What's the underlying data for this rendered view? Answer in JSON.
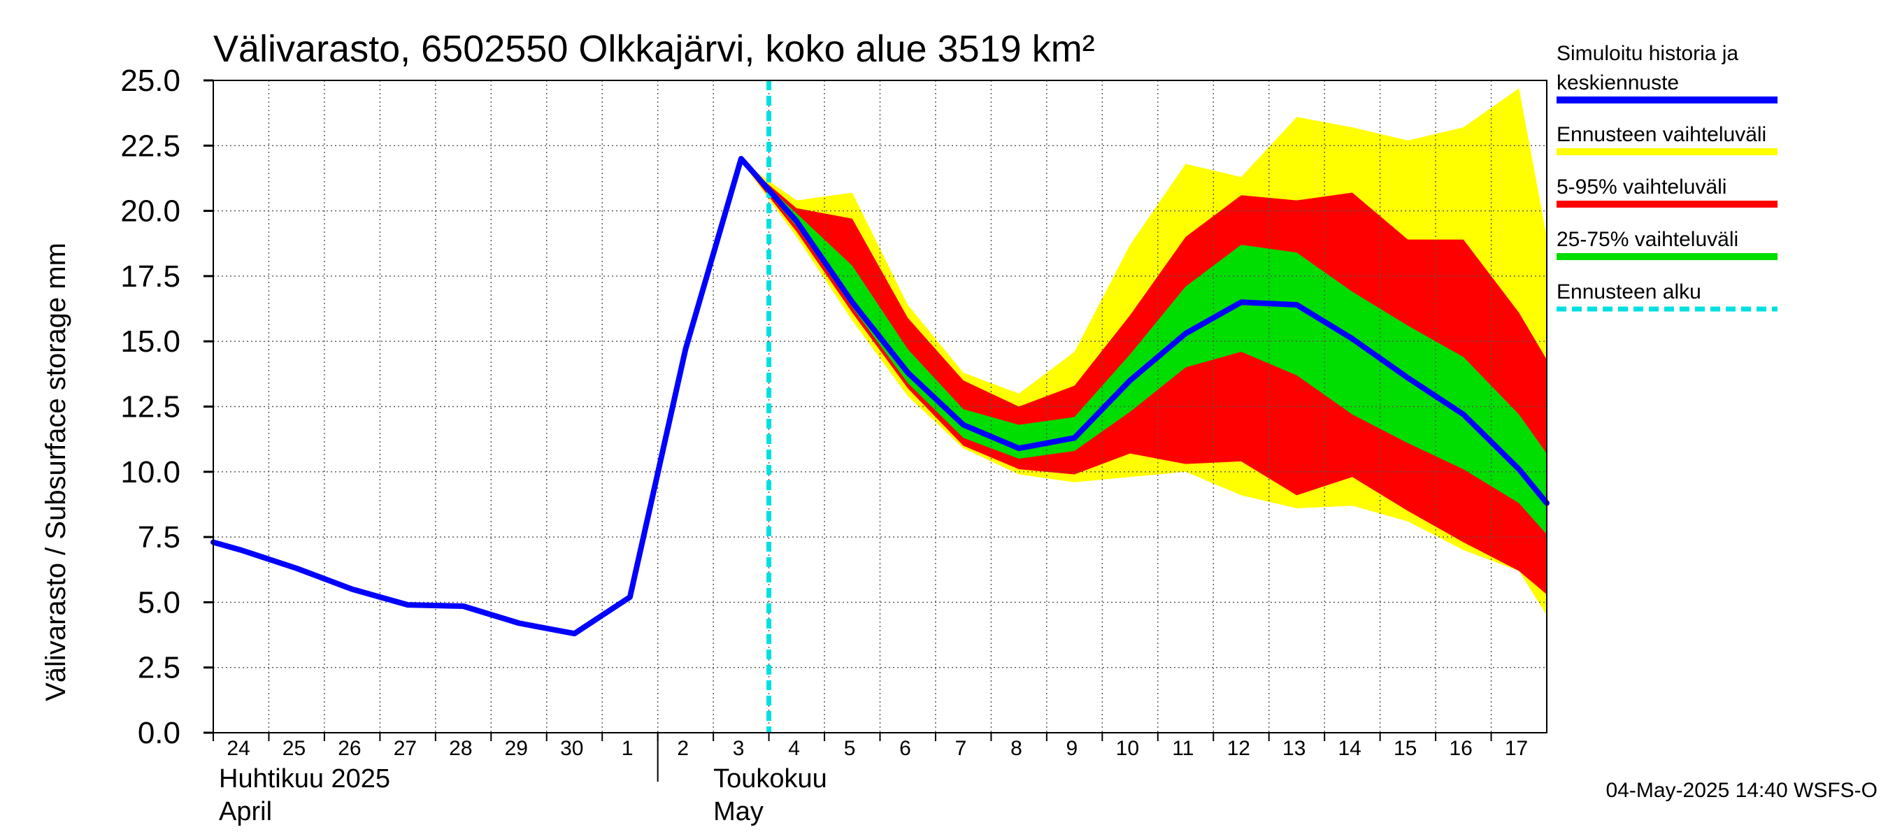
{
  "chart_data": {
    "type": "area",
    "title": "Välivarasto, 6502550 Olkkajärvi, koko alue 3519 km²",
    "ylabel": "Välivarasto / Subsurface storage  mm",
    "ylim": [
      0,
      25
    ],
    "yticks": [
      "0.0",
      "2.5",
      "5.0",
      "7.5",
      "10.0",
      "12.5",
      "15.0",
      "17.5",
      "20.0",
      "22.5",
      "25.0"
    ],
    "xlim": [
      -0.5,
      23.5
    ],
    "x_tick_labels": [
      "24",
      "25",
      "26",
      "27",
      "28",
      "29",
      "30",
      "1",
      "2",
      "3",
      "4",
      "5",
      "6",
      "7",
      "8",
      "9",
      "10",
      "11",
      "12",
      "13",
      "14",
      "15",
      "16",
      "17"
    ],
    "month_labels": [
      {
        "line1": "Huhtikuu  2025",
        "line2": "April",
        "at": -0.5
      },
      {
        "line1": "Toukokuu",
        "line2": "May",
        "at": 7.5
      }
    ],
    "forecast_start_x": 9.5,
    "series": [
      {
        "name": "Ennusteen vaihteluväli",
        "color": "#ffff00",
        "x": [
          9,
          10,
          11,
          12,
          13,
          14,
          15,
          16,
          17,
          18,
          19,
          20,
          21,
          22,
          23,
          23.5
        ],
        "upper": [
          21.9,
          20.4,
          20.7,
          16.4,
          13.8,
          13.0,
          14.6,
          18.7,
          21.8,
          21.3,
          23.6,
          23.2,
          22.7,
          23.2,
          24.7,
          19.0
        ],
        "lower": [
          21.9,
          19.0,
          15.8,
          12.9,
          10.9,
          9.9,
          9.6,
          9.8,
          10.0,
          9.1,
          8.6,
          8.7,
          8.1,
          7.0,
          6.2,
          4.5
        ]
      },
      {
        "name": "5-95% vaihteluväli",
        "color": "#ff0000",
        "x": [
          9,
          10,
          11,
          12,
          13,
          14,
          15,
          16,
          17,
          18,
          19,
          20,
          21,
          22,
          23,
          23.5
        ],
        "upper": [
          21.9,
          20.1,
          19.7,
          15.9,
          13.5,
          12.5,
          13.3,
          16.0,
          19.0,
          20.6,
          20.4,
          20.7,
          18.9,
          18.9,
          16.1,
          14.3
        ],
        "lower": [
          21.9,
          19.2,
          16.1,
          13.2,
          11.0,
          10.1,
          9.9,
          10.7,
          10.3,
          10.4,
          9.1,
          9.8,
          8.5,
          7.3,
          6.2,
          5.3
        ]
      },
      {
        "name": "25-75% vaihteluväli",
        "color": "#00dd00",
        "x": [
          9,
          10,
          11,
          12,
          13,
          14,
          15,
          16,
          17,
          18,
          19,
          20,
          21,
          22,
          23,
          23.5
        ],
        "upper": [
          21.9,
          19.9,
          17.9,
          14.7,
          12.4,
          11.8,
          12.1,
          14.5,
          17.1,
          18.7,
          18.4,
          16.9,
          15.6,
          14.4,
          12.2,
          10.7
        ],
        "lower": [
          21.9,
          19.4,
          16.3,
          13.4,
          11.3,
          10.5,
          10.8,
          12.3,
          14.0,
          14.6,
          13.7,
          12.2,
          11.1,
          10.1,
          8.8,
          7.6
        ]
      },
      {
        "name": "Simuloitu historia ja keskiennuste",
        "color": "#0000ff",
        "x": [
          -0.5,
          0,
          1,
          2,
          3,
          4,
          5,
          6,
          7,
          8,
          9,
          10,
          11,
          12,
          13,
          14,
          15,
          16,
          17,
          18,
          19,
          20,
          21,
          22,
          23,
          23.5
        ],
        "values": [
          7.3,
          7.0,
          6.3,
          5.5,
          4.9,
          4.85,
          4.2,
          3.8,
          5.2,
          14.7,
          22.0,
          19.6,
          16.5,
          13.8,
          11.8,
          10.9,
          11.3,
          13.5,
          15.3,
          16.5,
          16.4,
          15.1,
          13.6,
          12.2,
          10.1,
          8.8
        ]
      }
    ],
    "legend": {
      "placement": "right",
      "items": [
        {
          "label": "Simuloitu historia ja",
          "label2": "keskiennuste",
          "color": "#0000ff",
          "style": "solid"
        },
        {
          "label": "Ennusteen vaihteluväli",
          "color": "#ffff00",
          "style": "solid"
        },
        {
          "label": "5-95% vaihteluväli",
          "color": "#ff0000",
          "style": "solid"
        },
        {
          "label": "25-75% vaihteluväli",
          "color": "#00dd00",
          "style": "solid"
        },
        {
          "label": "Ennusteen alku",
          "color": "#00e0e0",
          "style": "dashed"
        }
      ]
    },
    "footer": "04-May-2025 14:40 WSFS-O"
  }
}
